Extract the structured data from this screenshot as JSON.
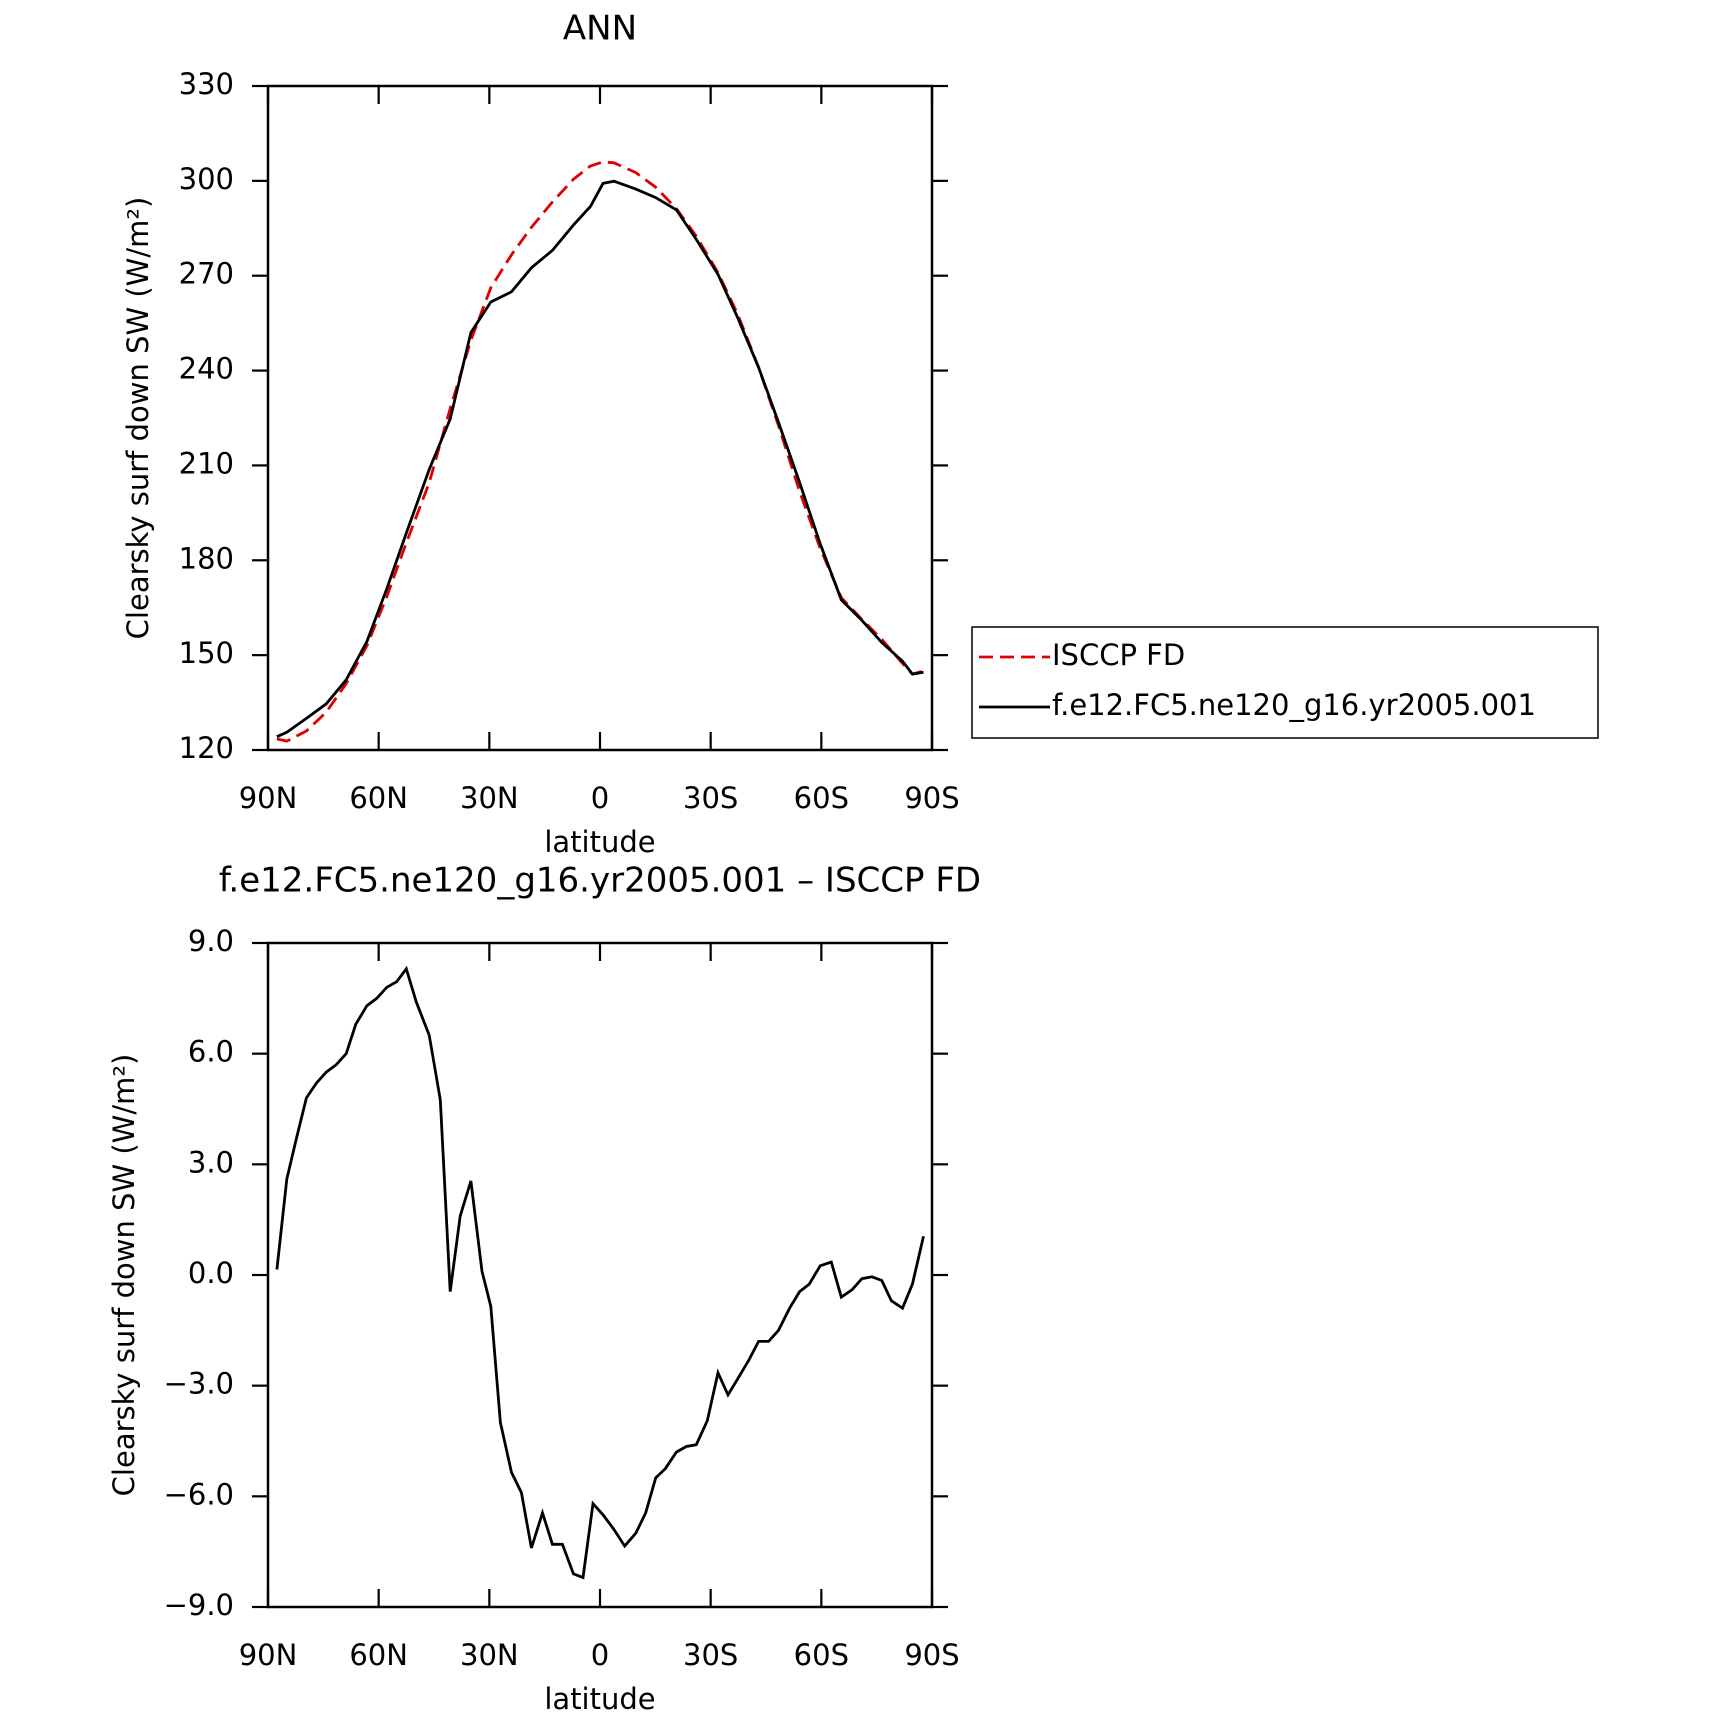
{
  "chart_data": [
    {
      "type": "line",
      "title": "ANN",
      "x_label": "latitude",
      "y_label": "Clearsky surf down SW (W/m²)",
      "xlim": [
        90,
        -90
      ],
      "xticks": [
        {
          "value": 90,
          "label": "90N"
        },
        {
          "value": 60,
          "label": "60N"
        },
        {
          "value": 30,
          "label": "30N"
        },
        0,
        {
          "value": -30,
          "label": "30S"
        },
        {
          "value": -60,
          "label": "60S"
        },
        {
          "value": -90,
          "label": "90S"
        }
      ],
      "ylim": [
        120,
        330
      ],
      "yticks": [
        120,
        150,
        180,
        210,
        240,
        270,
        300,
        330
      ],
      "x": [
        87.6,
        84.9,
        79.6,
        74.2,
        68.8,
        63.2,
        57.8,
        52.5,
        46.3,
        40.6,
        35.0,
        29.6,
        24.0,
        18.6,
        12.9,
        7.2,
        2.6,
        -0.8,
        -3.8,
        -9.7,
        -15.1,
        -20.7,
        -26.1,
        -32.0,
        -37.4,
        -43.0,
        -48.4,
        -54.1,
        -59.7,
        -65.4,
        -71.0,
        -76.4,
        -82.0,
        -84.7,
        -87.7
      ],
      "series": [
        {
          "name": "ISCCP FD",
          "color": "#e00000",
          "dashed": true,
          "values": [
            123.5,
            122.8,
            126,
            132,
            141,
            153,
            168.5,
            185.5,
            204.5,
            228,
            249.6,
            266.2,
            276.6,
            285.3,
            293.3,
            300.5,
            304.7,
            306,
            305.7,
            302.6,
            298,
            291.2,
            282.5,
            271,
            257.6,
            241,
            222.6,
            201.8,
            183.8,
            168.2,
            161.3,
            155,
            147.4,
            144,
            145
          ]
        },
        {
          "name": "f.e12.FC5.ne120_g16.yr2005.001",
          "color": "#000000",
          "dashed": false,
          "values": [
            124.2,
            125.6,
            130,
            134.6,
            142.2,
            154.3,
            171,
            188.6,
            208.7,
            224.7,
            252,
            261.7,
            264.9,
            272.5,
            278,
            286,
            291.9,
            299.2,
            299.9,
            297.4,
            294.7,
            290.8,
            281.5,
            270.4,
            256.5,
            241,
            223.6,
            204.6,
            185.2,
            167.5,
            161,
            154,
            148.1,
            144,
            144.6
          ]
        }
      ]
    },
    {
      "type": "line",
      "title": "f.e12.FC5.ne120_g16.yr2005.001 – ISCCP FD",
      "x_label": "latitude",
      "y_label": "Clearsky surf down SW (W/m²)",
      "xlim": [
        90,
        -90
      ],
      "xticks": [
        {
          "value": 90,
          "label": "90N"
        },
        {
          "value": 60,
          "label": "60N"
        },
        {
          "value": 30,
          "label": "30N"
        },
        0,
        {
          "value": -30,
          "label": "30S"
        },
        {
          "value": -60,
          "label": "60S"
        },
        {
          "value": -90,
          "label": "90S"
        }
      ],
      "ylim": [
        -9,
        9
      ],
      "yticks": [
        {
          "value": -9,
          "label": "−9.0"
        },
        {
          "value": -6,
          "label": "−6.0"
        },
        {
          "value": -3,
          "label": "−3.0"
        },
        {
          "value": 0,
          "label": "0.0"
        },
        {
          "value": 3,
          "label": "3.0"
        },
        {
          "value": 6,
          "label": "6.0"
        },
        {
          "value": 9,
          "label": "9.0"
        }
      ],
      "x": [
        87.6,
        84.9,
        82.3,
        79.6,
        76.9,
        74.2,
        71.5,
        68.8,
        66.2,
        63.2,
        60.5,
        57.8,
        55.1,
        52.5,
        49.8,
        46.3,
        43.3,
        40.6,
        37.9,
        35.0,
        32.0,
        29.6,
        27.0,
        24.0,
        21.3,
        18.6,
        15.6,
        12.9,
        10.2,
        7.2,
        4.6,
        1.9,
        -0.8,
        -3.8,
        -6.7,
        -9.7,
        -12.4,
        -15.1,
        -17.7,
        -20.7,
        -23.4,
        -26.1,
        -29.1,
        -32.0,
        -34.7,
        -37.4,
        -40.4,
        -43.0,
        -45.7,
        -48.4,
        -51.4,
        -54.1,
        -56.7,
        -59.7,
        -62.7,
        -65.4,
        -68.3,
        -71.0,
        -73.7,
        -76.4,
        -79.0,
        -82.0,
        -84.7,
        -87.7
      ],
      "series": [
        {
          "color": "#000000",
          "dashed": false,
          "values": [
            0.15,
            2.6,
            3.7,
            4.8,
            5.2,
            5.5,
            5.7,
            6.0,
            6.8,
            7.3,
            7.5,
            7.8,
            7.95,
            8.3,
            7.4,
            6.5,
            4.75,
            -0.45,
            1.6,
            2.55,
            0.1,
            -0.85,
            -4.0,
            -5.35,
            -5.9,
            -7.4,
            -6.45,
            -7.3,
            -7.3,
            -8.1,
            -8.2,
            -6.2,
            -6.5,
            -6.9,
            -7.35,
            -7.0,
            -6.45,
            -5.5,
            -5.25,
            -4.8,
            -4.65,
            -4.6,
            -3.95,
            -2.65,
            -3.25,
            -2.8,
            -2.3,
            -1.8,
            -1.8,
            -1.5,
            -0.9,
            -0.45,
            -0.25,
            0.25,
            0.35,
            -0.6,
            -0.4,
            -0.1,
            -0.05,
            -0.15,
            -0.7,
            -0.9,
            -0.25,
            1.05
          ]
        }
      ]
    }
  ]
}
